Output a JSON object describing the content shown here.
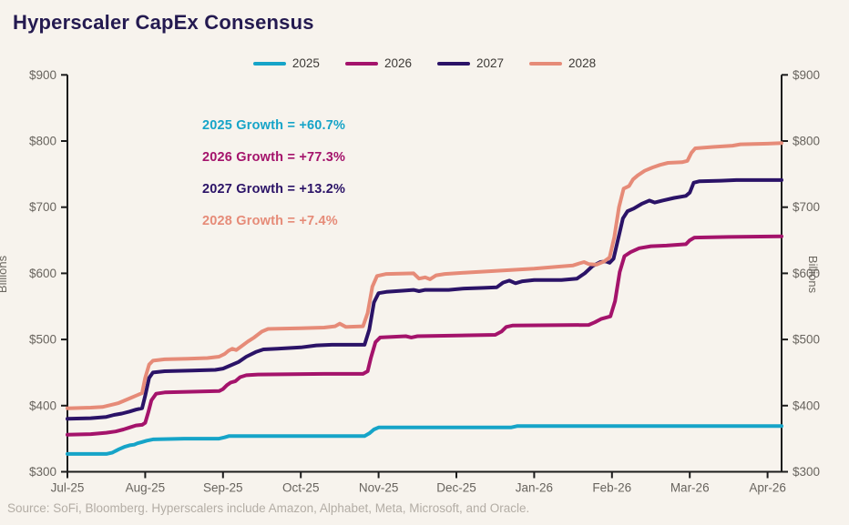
{
  "title": "Hyperscaler CapEx Consensus",
  "source_note": "Source: SoFi, Bloomberg. Hyperscalers include Amazon, Alphabet, Meta, Microsoft, and Oracle.",
  "annotations": [
    {
      "text": "2025 Growth = +60.7%",
      "color": "#16A4C8"
    },
    {
      "text": "2026 Growth = +77.3%",
      "color": "#A4136B"
    },
    {
      "text": "2027 Growth = +13.2%",
      "color": "#2B1367"
    },
    {
      "text": "2028 Growth = +7.4%",
      "color": "#E68B78"
    }
  ],
  "chart_data": {
    "type": "line",
    "title": "Hyperscaler CapEx Consensus",
    "ylabel_left": "Billions",
    "ylabel_right": "Billions",
    "ylim": [
      300,
      900
    ],
    "grid": false,
    "legend_position": "top",
    "x_unit": "month_index_from_Jul-25",
    "x_tick_labels": [
      "Jul-25",
      "Aug-25",
      "Sep-25",
      "Oct-25",
      "Nov-25",
      "Dec-25",
      "Jan-26",
      "Feb-26",
      "Mar-26",
      "Apr-26"
    ],
    "y_ticks": [
      {
        "value": 300,
        "label": "$300"
      },
      {
        "value": 400,
        "label": "$400"
      },
      {
        "value": 500,
        "label": "$500"
      },
      {
        "value": 600,
        "label": "$600"
      },
      {
        "value": 700,
        "label": "$700"
      },
      {
        "value": 800,
        "label": "$800"
      },
      {
        "value": 900,
        "label": "$900"
      }
    ],
    "axis_color": "#1c1c1c",
    "tick_label_color": "#68645e",
    "series": [
      {
        "name": "2025",
        "color": "#16A4C8",
        "start_value": 327,
        "end_value": 369,
        "points": [
          [
            0,
            327
          ],
          [
            0.5,
            327
          ],
          [
            0.58,
            329
          ],
          [
            0.66,
            334
          ],
          [
            0.74,
            338
          ],
          [
            0.8,
            340
          ],
          [
            0.86,
            341
          ],
          [
            0.9,
            343
          ],
          [
            0.96,
            345
          ],
          [
            1.02,
            347
          ],
          [
            1.1,
            349
          ],
          [
            1.5,
            350
          ],
          [
            1.95,
            350
          ],
          [
            2.02,
            352
          ],
          [
            2.08,
            354
          ],
          [
            3.82,
            354
          ],
          [
            3.88,
            358
          ],
          [
            3.94,
            364
          ],
          [
            4.0,
            367
          ],
          [
            5.7,
            367
          ],
          [
            5.78,
            369
          ],
          [
            9.18,
            369
          ]
        ]
      },
      {
        "name": "2026",
        "color": "#A4136B",
        "start_value": 356,
        "end_value": 656,
        "points": [
          [
            0,
            356
          ],
          [
            0.3,
            357
          ],
          [
            0.5,
            359
          ],
          [
            0.62,
            361
          ],
          [
            0.72,
            364
          ],
          [
            0.8,
            367
          ],
          [
            0.88,
            370
          ],
          [
            0.96,
            371
          ],
          [
            1.0,
            374
          ],
          [
            1.04,
            390
          ],
          [
            1.08,
            408
          ],
          [
            1.14,
            418
          ],
          [
            1.25,
            420
          ],
          [
            1.6,
            421
          ],
          [
            1.95,
            422
          ],
          [
            2.0,
            425
          ],
          [
            2.05,
            431
          ],
          [
            2.1,
            435
          ],
          [
            2.16,
            437
          ],
          [
            2.22,
            443
          ],
          [
            2.3,
            446
          ],
          [
            2.45,
            447
          ],
          [
            3.3,
            448
          ],
          [
            3.8,
            448
          ],
          [
            3.86,
            452
          ],
          [
            3.9,
            472
          ],
          [
            3.96,
            496
          ],
          [
            4.02,
            503
          ],
          [
            4.35,
            505
          ],
          [
            4.42,
            503
          ],
          [
            4.5,
            505
          ],
          [
            5.5,
            507
          ],
          [
            5.58,
            512
          ],
          [
            5.64,
            519
          ],
          [
            5.72,
            521
          ],
          [
            6.7,
            522
          ],
          [
            6.78,
            526
          ],
          [
            6.86,
            531
          ],
          [
            6.98,
            535
          ],
          [
            7.04,
            558
          ],
          [
            7.1,
            602
          ],
          [
            7.16,
            626
          ],
          [
            7.24,
            632
          ],
          [
            7.35,
            638
          ],
          [
            7.5,
            641
          ],
          [
            7.7,
            642
          ],
          [
            7.95,
            644
          ],
          [
            8.0,
            650
          ],
          [
            8.06,
            654
          ],
          [
            8.5,
            655
          ],
          [
            9.18,
            656
          ]
        ]
      },
      {
        "name": "2027",
        "color": "#2B1367",
        "start_value": 380,
        "end_value": 741,
        "points": [
          [
            0,
            380
          ],
          [
            0.3,
            381
          ],
          [
            0.5,
            383
          ],
          [
            0.6,
            386
          ],
          [
            0.7,
            388
          ],
          [
            0.8,
            391
          ],
          [
            0.88,
            394
          ],
          [
            0.96,
            396
          ],
          [
            1.0,
            415
          ],
          [
            1.05,
            442
          ],
          [
            1.1,
            450
          ],
          [
            1.25,
            452
          ],
          [
            1.6,
            453
          ],
          [
            1.9,
            454
          ],
          [
            2.0,
            456
          ],
          [
            2.1,
            461
          ],
          [
            2.2,
            466
          ],
          [
            2.3,
            474
          ],
          [
            2.42,
            481
          ],
          [
            2.52,
            485
          ],
          [
            2.7,
            486
          ],
          [
            3.0,
            488
          ],
          [
            3.2,
            491
          ],
          [
            3.4,
            492
          ],
          [
            3.82,
            492
          ],
          [
            3.88,
            515
          ],
          [
            3.94,
            556
          ],
          [
            4.0,
            570
          ],
          [
            4.1,
            572
          ],
          [
            4.35,
            574
          ],
          [
            4.45,
            575
          ],
          [
            4.52,
            573
          ],
          [
            4.6,
            575
          ],
          [
            4.9,
            575
          ],
          [
            5.1,
            577
          ],
          [
            5.35,
            578
          ],
          [
            5.52,
            579
          ],
          [
            5.6,
            586
          ],
          [
            5.68,
            589
          ],
          [
            5.76,
            585
          ],
          [
            5.85,
            588
          ],
          [
            6.0,
            590
          ],
          [
            6.35,
            590
          ],
          [
            6.55,
            592
          ],
          [
            6.65,
            600
          ],
          [
            6.75,
            611
          ],
          [
            6.85,
            617
          ],
          [
            6.92,
            618
          ],
          [
            6.97,
            616
          ],
          [
            7.02,
            622
          ],
          [
            7.08,
            652
          ],
          [
            7.14,
            683
          ],
          [
            7.2,
            694
          ],
          [
            7.28,
            698
          ],
          [
            7.38,
            705
          ],
          [
            7.48,
            710
          ],
          [
            7.55,
            707
          ],
          [
            7.65,
            710
          ],
          [
            7.8,
            714
          ],
          [
            7.95,
            717
          ],
          [
            8.0,
            722
          ],
          [
            8.05,
            737
          ],
          [
            8.12,
            739
          ],
          [
            8.4,
            740
          ],
          [
            8.6,
            741
          ],
          [
            9.18,
            741
          ]
        ]
      },
      {
        "name": "2028",
        "color": "#E68B78",
        "start_value": 396,
        "end_value": 797,
        "points": [
          [
            0,
            396
          ],
          [
            0.3,
            397
          ],
          [
            0.45,
            398
          ],
          [
            0.56,
            401
          ],
          [
            0.66,
            404
          ],
          [
            0.74,
            408
          ],
          [
            0.82,
            412
          ],
          [
            0.9,
            416
          ],
          [
            0.96,
            419
          ],
          [
            1.0,
            442
          ],
          [
            1.05,
            462
          ],
          [
            1.1,
            468
          ],
          [
            1.25,
            470
          ],
          [
            1.55,
            471
          ],
          [
            1.8,
            472
          ],
          [
            1.95,
            474
          ],
          [
            2.02,
            478
          ],
          [
            2.07,
            483
          ],
          [
            2.12,
            486
          ],
          [
            2.17,
            484
          ],
          [
            2.24,
            490
          ],
          [
            2.32,
            497
          ],
          [
            2.4,
            503
          ],
          [
            2.5,
            512
          ],
          [
            2.58,
            516
          ],
          [
            3.0,
            517
          ],
          [
            3.3,
            518
          ],
          [
            3.44,
            520
          ],
          [
            3.5,
            524
          ],
          [
            3.58,
            519
          ],
          [
            3.8,
            520
          ],
          [
            3.86,
            540
          ],
          [
            3.92,
            580
          ],
          [
            3.98,
            596
          ],
          [
            4.1,
            599
          ],
          [
            4.45,
            600
          ],
          [
            4.52,
            592
          ],
          [
            4.6,
            594
          ],
          [
            4.66,
            591
          ],
          [
            4.74,
            597
          ],
          [
            4.85,
            599
          ],
          [
            5.1,
            601
          ],
          [
            5.4,
            603
          ],
          [
            5.7,
            605
          ],
          [
            6.0,
            607
          ],
          [
            6.3,
            610
          ],
          [
            6.5,
            612
          ],
          [
            6.58,
            615
          ],
          [
            6.64,
            617
          ],
          [
            6.7,
            614
          ],
          [
            6.8,
            613
          ],
          [
            6.9,
            618
          ],
          [
            6.97,
            624
          ],
          [
            7.03,
            655
          ],
          [
            7.09,
            700
          ],
          [
            7.15,
            728
          ],
          [
            7.22,
            732
          ],
          [
            7.27,
            742
          ],
          [
            7.33,
            748
          ],
          [
            7.42,
            755
          ],
          [
            7.52,
            760
          ],
          [
            7.62,
            764
          ],
          [
            7.72,
            767
          ],
          [
            7.9,
            768
          ],
          [
            7.97,
            770
          ],
          [
            8.02,
            782
          ],
          [
            8.07,
            789
          ],
          [
            8.3,
            791
          ],
          [
            8.55,
            793
          ],
          [
            8.65,
            795
          ],
          [
            9.0,
            796
          ],
          [
            9.18,
            797
          ]
        ]
      }
    ]
  }
}
